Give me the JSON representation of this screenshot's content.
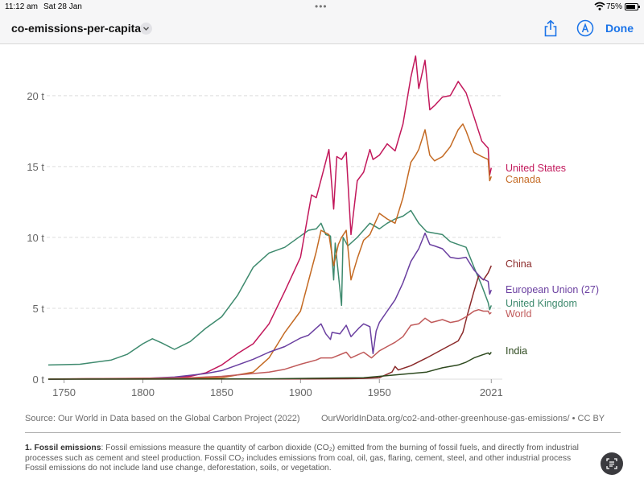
{
  "status_bar": {
    "time": "11:12 am",
    "date": "Sat 28 Jan",
    "battery": "75%",
    "battery_level": 0.75
  },
  "toolbar": {
    "title": "co-emissions-per-capita",
    "done_label": "Done"
  },
  "footer": {
    "source": "Source: Our World in Data based on the Global Carbon Project (2022)",
    "url": "OurWorldInData.org/co2-and-other-greenhouse-gas-emissions/ • CC BY",
    "note_label": "1. Fossil emissions",
    "note_line1": ": Fossil emissions measure the quantity of carbon dioxide (CO₂) emitted from the burning of fossil fuels, and directly from industrial",
    "note_line2": "processes such as cement and steel production. Fossil CO₂ includes emissions from coal, oil, gas, flaring, cement, steel, and other industrial process",
    "note_line3": "Fossil emissions do not include land use change, deforestation, soils, or vegetation."
  },
  "chart_data": {
    "type": "line",
    "title": "co-emissions-per-capita",
    "xlim": [
      1740,
      2028
    ],
    "ylim": [
      0,
      23
    ],
    "x_ticks": [
      1750,
      1800,
      1850,
      1900,
      1950,
      2021
    ],
    "x_tick_labels": [
      "1750",
      "1800",
      "1850",
      "1900",
      "1950",
      "2021"
    ],
    "y_ticks": [
      0,
      5,
      10,
      15,
      20
    ],
    "y_tick_labels": [
      "0 t",
      "5 t",
      "10 t",
      "15 t",
      "20 t"
    ],
    "grid": true,
    "series": [
      {
        "name": "United Kingdom",
        "label": "United Kingdom",
        "color": "#3e8a6e",
        "points": [
          [
            1740,
            1.0
          ],
          [
            1760,
            1.05
          ],
          [
            1780,
            1.35
          ],
          [
            1790,
            1.75
          ],
          [
            1800,
            2.5
          ],
          [
            1806,
            2.85
          ],
          [
            1812,
            2.55
          ],
          [
            1820,
            2.1
          ],
          [
            1830,
            2.65
          ],
          [
            1840,
            3.6
          ],
          [
            1850,
            4.4
          ],
          [
            1860,
            5.9
          ],
          [
            1870,
            7.9
          ],
          [
            1880,
            8.9
          ],
          [
            1890,
            9.3
          ],
          [
            1900,
            10.1
          ],
          [
            1905,
            10.5
          ],
          [
            1910,
            10.6
          ],
          [
            1913,
            11.0
          ],
          [
            1916,
            10.2
          ],
          [
            1919,
            10.1
          ],
          [
            1921,
            7.0
          ],
          [
            1922,
            9.6
          ],
          [
            1926,
            5.2
          ],
          [
            1927,
            10.0
          ],
          [
            1930,
            9.4
          ],
          [
            1936,
            10.0
          ],
          [
            1944,
            11.0
          ],
          [
            1950,
            10.6
          ],
          [
            1955,
            11.0
          ],
          [
            1960,
            11.3
          ],
          [
            1965,
            11.5
          ],
          [
            1970,
            11.9
          ],
          [
            1975,
            11.0
          ],
          [
            1980,
            10.4
          ],
          [
            1985,
            10.3
          ],
          [
            1990,
            10.2
          ],
          [
            1995,
            9.7
          ],
          [
            2000,
            9.5
          ],
          [
            2005,
            9.3
          ],
          [
            2010,
            7.9
          ],
          [
            2015,
            6.6
          ],
          [
            2019,
            5.4
          ],
          [
            2020,
            4.9
          ],
          [
            2021,
            5.2
          ]
        ]
      },
      {
        "name": "United States",
        "label": "United States",
        "color": "#c2185b",
        "points": [
          [
            1740,
            0
          ],
          [
            1800,
            0.05
          ],
          [
            1820,
            0.1
          ],
          [
            1830,
            0.2
          ],
          [
            1840,
            0.45
          ],
          [
            1850,
            1.0
          ],
          [
            1860,
            1.8
          ],
          [
            1870,
            2.5
          ],
          [
            1880,
            3.9
          ],
          [
            1890,
            6.2
          ],
          [
            1900,
            8.6
          ],
          [
            1907,
            13.0
          ],
          [
            1910,
            12.8
          ],
          [
            1914,
            14.5
          ],
          [
            1918,
            16.2
          ],
          [
            1921,
            12.0
          ],
          [
            1923,
            15.7
          ],
          [
            1926,
            15.5
          ],
          [
            1929,
            16.0
          ],
          [
            1932,
            10.2
          ],
          [
            1936,
            14.0
          ],
          [
            1940,
            14.6
          ],
          [
            1944,
            16.2
          ],
          [
            1946,
            15.5
          ],
          [
            1950,
            15.8
          ],
          [
            1955,
            16.6
          ],
          [
            1960,
            16.1
          ],
          [
            1965,
            18.0
          ],
          [
            1970,
            21.3
          ],
          [
            1973,
            22.8
          ],
          [
            1975,
            20.5
          ],
          [
            1979,
            22.5
          ],
          [
            1982,
            19.0
          ],
          [
            1985,
            19.3
          ],
          [
            1990,
            19.9
          ],
          [
            1995,
            20.0
          ],
          [
            2000,
            21.0
          ],
          [
            2005,
            20.2
          ],
          [
            2010,
            18.5
          ],
          [
            2015,
            16.8
          ],
          [
            2019,
            16.3
          ],
          [
            2020,
            14.4
          ],
          [
            2021,
            14.9
          ]
        ]
      },
      {
        "name": "Canada",
        "label": "Canada",
        "color": "#c46a23",
        "points": [
          [
            1740,
            0
          ],
          [
            1850,
            0.1
          ],
          [
            1870,
            0.5
          ],
          [
            1880,
            1.5
          ],
          [
            1890,
            3.3
          ],
          [
            1900,
            4.8
          ],
          [
            1905,
            6.9
          ],
          [
            1910,
            9.0
          ],
          [
            1913,
            10.5
          ],
          [
            1918,
            10.2
          ],
          [
            1921,
            8.0
          ],
          [
            1924,
            9.5
          ],
          [
            1926,
            10.0
          ],
          [
            1929,
            10.5
          ],
          [
            1932,
            7.0
          ],
          [
            1936,
            8.5
          ],
          [
            1940,
            9.8
          ],
          [
            1944,
            10.2
          ],
          [
            1948,
            11.2
          ],
          [
            1950,
            11.7
          ],
          [
            1955,
            11.3
          ],
          [
            1960,
            11.0
          ],
          [
            1965,
            12.8
          ],
          [
            1970,
            15.3
          ],
          [
            1973,
            15.8
          ],
          [
            1975,
            16.2
          ],
          [
            1979,
            17.6
          ],
          [
            1982,
            15.8
          ],
          [
            1985,
            15.4
          ],
          [
            1990,
            15.7
          ],
          [
            1995,
            16.4
          ],
          [
            2000,
            17.6
          ],
          [
            2003,
            18.0
          ],
          [
            2005,
            17.5
          ],
          [
            2010,
            16.0
          ],
          [
            2015,
            15.7
          ],
          [
            2019,
            15.5
          ],
          [
            2020,
            14.0
          ],
          [
            2021,
            14.3
          ]
        ]
      },
      {
        "name": "China",
        "label": "China",
        "color": "#8b2a2a",
        "points": [
          [
            1740,
            0
          ],
          [
            1900,
            0.01
          ],
          [
            1930,
            0.03
          ],
          [
            1940,
            0.05
          ],
          [
            1950,
            0.1
          ],
          [
            1958,
            0.5
          ],
          [
            1960,
            0.9
          ],
          [
            1962,
            0.65
          ],
          [
            1970,
            0.95
          ],
          [
            1980,
            1.5
          ],
          [
            1990,
            2.1
          ],
          [
            2000,
            2.7
          ],
          [
            2003,
            3.3
          ],
          [
            2006,
            4.6
          ],
          [
            2010,
            6.2
          ],
          [
            2013,
            7.3
          ],
          [
            2016,
            7.0
          ],
          [
            2019,
            7.5
          ],
          [
            2021,
            8.0
          ]
        ]
      },
      {
        "name": "European Union (27)",
        "label": "European Union (27)",
        "color": "#6a3fa0",
        "points": [
          [
            1740,
            0
          ],
          [
            1800,
            0.05
          ],
          [
            1820,
            0.15
          ],
          [
            1840,
            0.4
          ],
          [
            1850,
            0.6
          ],
          [
            1860,
            1.0
          ],
          [
            1870,
            1.4
          ],
          [
            1880,
            1.9
          ],
          [
            1890,
            2.3
          ],
          [
            1900,
            2.9
          ],
          [
            1905,
            3.1
          ],
          [
            1913,
            3.9
          ],
          [
            1916,
            3.2
          ],
          [
            1919,
            2.8
          ],
          [
            1920,
            3.3
          ],
          [
            1925,
            3.2
          ],
          [
            1929,
            3.8
          ],
          [
            1932,
            3.0
          ],
          [
            1937,
            3.6
          ],
          [
            1940,
            3.9
          ],
          [
            1944,
            3.7
          ],
          [
            1946,
            1.8
          ],
          [
            1948,
            3.4
          ],
          [
            1950,
            4.0
          ],
          [
            1955,
            4.8
          ],
          [
            1960,
            5.6
          ],
          [
            1965,
            6.8
          ],
          [
            1970,
            8.3
          ],
          [
            1975,
            9.2
          ],
          [
            1979,
            10.3
          ],
          [
            1982,
            9.5
          ],
          [
            1985,
            9.4
          ],
          [
            1990,
            9.2
          ],
          [
            1995,
            8.6
          ],
          [
            2000,
            8.5
          ],
          [
            2005,
            8.6
          ],
          [
            2010,
            7.7
          ],
          [
            2015,
            7.1
          ],
          [
            2019,
            6.9
          ],
          [
            2020,
            6.0
          ],
          [
            2021,
            6.3
          ]
        ]
      },
      {
        "name": "World",
        "label": "World",
        "color": "#c05a5a",
        "points": [
          [
            1740,
            0.01
          ],
          [
            1800,
            0.06
          ],
          [
            1830,
            0.1
          ],
          [
            1850,
            0.2
          ],
          [
            1870,
            0.4
          ],
          [
            1880,
            0.5
          ],
          [
            1890,
            0.7
          ],
          [
            1900,
            1.05
          ],
          [
            1910,
            1.35
          ],
          [
            1913,
            1.5
          ],
          [
            1920,
            1.5
          ],
          [
            1929,
            1.9
          ],
          [
            1932,
            1.5
          ],
          [
            1940,
            1.9
          ],
          [
            1945,
            1.5
          ],
          [
            1950,
            2.0
          ],
          [
            1955,
            2.3
          ],
          [
            1960,
            2.6
          ],
          [
            1965,
            3.0
          ],
          [
            1970,
            3.8
          ],
          [
            1975,
            3.9
          ],
          [
            1979,
            4.3
          ],
          [
            1983,
            4.0
          ],
          [
            1990,
            4.2
          ],
          [
            1995,
            4.0
          ],
          [
            2000,
            4.1
          ],
          [
            2005,
            4.4
          ],
          [
            2010,
            4.8
          ],
          [
            2013,
            4.9
          ],
          [
            2016,
            4.8
          ],
          [
            2019,
            4.8
          ],
          [
            2020,
            4.6
          ],
          [
            2021,
            4.7
          ]
        ]
      },
      {
        "name": "India",
        "label": "India",
        "color": "#2e4a1f",
        "points": [
          [
            1740,
            0
          ],
          [
            1880,
            0.02
          ],
          [
            1900,
            0.05
          ],
          [
            1920,
            0.08
          ],
          [
            1940,
            0.1
          ],
          [
            1950,
            0.2
          ],
          [
            1960,
            0.3
          ],
          [
            1970,
            0.4
          ],
          [
            1980,
            0.5
          ],
          [
            1990,
            0.8
          ],
          [
            2000,
            1.0
          ],
          [
            2005,
            1.2
          ],
          [
            2010,
            1.5
          ],
          [
            2015,
            1.7
          ],
          [
            2019,
            1.85
          ],
          [
            2020,
            1.75
          ],
          [
            2021,
            1.9
          ]
        ]
      }
    ]
  }
}
